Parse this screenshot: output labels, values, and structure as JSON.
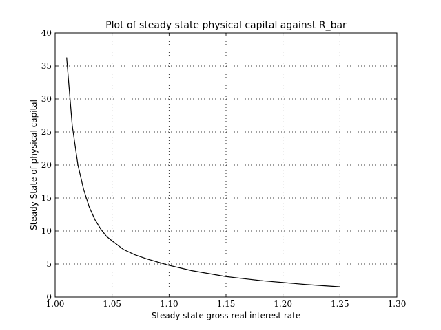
{
  "chart_data": {
    "type": "line",
    "title": "Plot of steady state physical capital against R_bar",
    "xlabel": "Steady state gross real interest rate",
    "ylabel": "Steady State of physical capital",
    "xlim": [
      1.0,
      1.3
    ],
    "ylim": [
      0,
      40
    ],
    "xticks": [
      "1.00",
      "1.05",
      "1.10",
      "1.15",
      "1.20",
      "1.25",
      "1.30"
    ],
    "yticks": [
      "0",
      "5",
      "10",
      "15",
      "20",
      "25",
      "30",
      "35",
      "40"
    ],
    "grid": true,
    "line_color": "#000000",
    "series": [
      {
        "x": [
          1.0101,
          1.015,
          1.02,
          1.025,
          1.03,
          1.035,
          1.04,
          1.045,
          1.05,
          1.06,
          1.07,
          1.08,
          1.09,
          1.1,
          1.11,
          1.12,
          1.13,
          1.14,
          1.15,
          1.16,
          1.17,
          1.18,
          1.19,
          1.2,
          1.21,
          1.22,
          1.23,
          1.24,
          1.25
        ],
        "y": [
          36.3,
          26.0,
          20.0,
          16.3,
          13.6,
          11.7,
          10.3,
          9.2,
          8.5,
          7.2,
          6.4,
          5.8,
          5.3,
          4.8,
          4.4,
          4.0,
          3.7,
          3.4,
          3.1,
          2.9,
          2.7,
          2.5,
          2.35,
          2.2,
          2.05,
          1.9,
          1.78,
          1.67,
          1.55
        ]
      }
    ]
  }
}
